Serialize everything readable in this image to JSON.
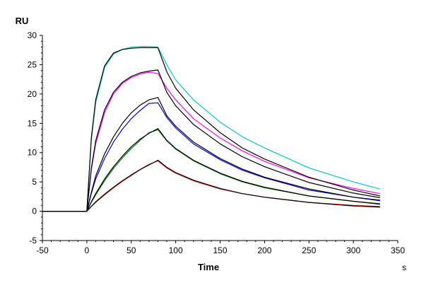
{
  "chart_data": {
    "type": "line",
    "title": "",
    "xlabel": "Time",
    "xunit": "s",
    "ylabel": "RU",
    "xlim": [
      -50,
      350
    ],
    "ylim": [
      -5,
      30
    ],
    "xticks": [
      -50,
      0,
      50,
      100,
      150,
      200,
      250,
      300,
      350
    ],
    "yticks": [
      -5,
      0,
      5,
      10,
      15,
      20,
      25,
      30
    ],
    "grid": false,
    "legend": "none",
    "fit_color": "#000000",
    "series": [
      {
        "color": "#00c8c8",
        "x": [
          -50,
          0,
          5,
          10,
          20,
          30,
          40,
          50,
          60,
          70,
          80,
          90,
          100,
          120,
          150,
          175,
          200,
          250,
          300,
          330
        ],
        "y": [
          0,
          0,
          12,
          18.5,
          24.5,
          26.8,
          27.6,
          28,
          28.1,
          28.1,
          28,
          25,
          22.4,
          19,
          15.2,
          12.7,
          10.8,
          7.4,
          5,
          3.8
        ]
      },
      {
        "color": "#ff00ff",
        "x": [
          -50,
          0,
          5,
          10,
          20,
          30,
          40,
          50,
          60,
          70,
          80,
          90,
          100,
          120,
          150,
          175,
          200,
          250,
          300,
          330
        ],
        "y": [
          0,
          0,
          7,
          11.5,
          16.8,
          20,
          21.8,
          22.8,
          23.4,
          23.7,
          23.5,
          21,
          19,
          15.8,
          12.5,
          10.3,
          8.5,
          5.7,
          3.9,
          3
        ]
      },
      {
        "color": "#0000ff",
        "x": [
          -50,
          0,
          5,
          10,
          20,
          30,
          40,
          50,
          60,
          70,
          80,
          90,
          100,
          120,
          150,
          175,
          200,
          250,
          300,
          330
        ],
        "y": [
          0,
          0,
          3,
          5.5,
          9,
          11.8,
          14,
          15.8,
          17.2,
          18.4,
          18.5,
          16,
          14.2,
          11.5,
          8.8,
          7,
          5.7,
          3.6,
          2.4,
          1.9
        ]
      },
      {
        "color": "#008000",
        "x": [
          -50,
          0,
          5,
          10,
          20,
          30,
          40,
          50,
          60,
          70,
          80,
          90,
          100,
          120,
          150,
          175,
          200,
          250,
          300,
          330
        ],
        "y": [
          0,
          0,
          1.5,
          2.8,
          5.2,
          7.3,
          9.1,
          10.7,
          12.1,
          13.4,
          13.9,
          12,
          10.6,
          8.6,
          6.4,
          5,
          4,
          2.6,
          1.7,
          1.3
        ]
      },
      {
        "color": "#ff0000",
        "x": [
          -50,
          0,
          5,
          10,
          20,
          30,
          40,
          50,
          60,
          70,
          80,
          90,
          100,
          120,
          150,
          175,
          200,
          250,
          300,
          330
        ],
        "y": [
          0,
          0,
          0.8,
          1.5,
          2.8,
          4,
          5.1,
          6.1,
          7.1,
          8,
          8.6,
          7.4,
          6.5,
          5.2,
          3.8,
          3,
          2.4,
          1.5,
          1,
          0.8
        ]
      }
    ],
    "fits": [
      {
        "x": [
          -50,
          0,
          5,
          10,
          20,
          30,
          40,
          50,
          60,
          70,
          80,
          90,
          100,
          120,
          150,
          175,
          200,
          250,
          300,
          330
        ],
        "y": [
          0,
          0,
          12.5,
          19,
          24.8,
          27,
          27.6,
          27.8,
          27.9,
          27.9,
          27.9,
          23.8,
          21,
          17.3,
          13.4,
          10.8,
          8.9,
          5.8,
          3.6,
          2.6
        ]
      },
      {
        "x": [
          -50,
          0,
          5,
          10,
          20,
          30,
          40,
          50,
          60,
          70,
          80,
          90,
          100,
          120,
          150,
          175,
          200,
          250,
          300,
          330
        ],
        "y": [
          0,
          0,
          7.3,
          12,
          17.3,
          20.3,
          22,
          23,
          23.6,
          23.9,
          24.1,
          20.3,
          18,
          14.8,
          11.5,
          9.3,
          7.6,
          4.9,
          3.1,
          2.3
        ]
      },
      {
        "x": [
          -50,
          0,
          5,
          10,
          20,
          30,
          40,
          50,
          60,
          70,
          80,
          90,
          100,
          120,
          150,
          175,
          200,
          250,
          300,
          330
        ],
        "y": [
          0,
          0,
          3.2,
          6,
          9.8,
          12.7,
          15,
          16.8,
          18.1,
          19,
          19.4,
          16.3,
          14.5,
          11.8,
          9,
          7.2,
          5.8,
          3.8,
          2.4,
          1.8
        ]
      },
      {
        "x": [
          -50,
          0,
          5,
          10,
          20,
          30,
          40,
          50,
          60,
          70,
          80,
          90,
          100,
          120,
          150,
          175,
          200,
          250,
          300,
          330
        ],
        "y": [
          0,
          0,
          1.6,
          3,
          5.5,
          7.6,
          9.4,
          11,
          12.3,
          13.3,
          14.1,
          12.1,
          10.7,
          8.7,
          6.5,
          5.1,
          4.1,
          2.6,
          1.7,
          1.2
        ]
      },
      {
        "x": [
          -50,
          0,
          5,
          10,
          20,
          30,
          40,
          50,
          60,
          70,
          80,
          90,
          100,
          120,
          150,
          175,
          200,
          250,
          300,
          330
        ],
        "y": [
          0,
          0,
          0.8,
          1.6,
          2.9,
          4.1,
          5.2,
          6.2,
          7.1,
          7.9,
          8.7,
          7.5,
          6.6,
          5.3,
          3.9,
          3,
          2.4,
          1.5,
          0.9,
          0.7
        ]
      }
    ]
  }
}
